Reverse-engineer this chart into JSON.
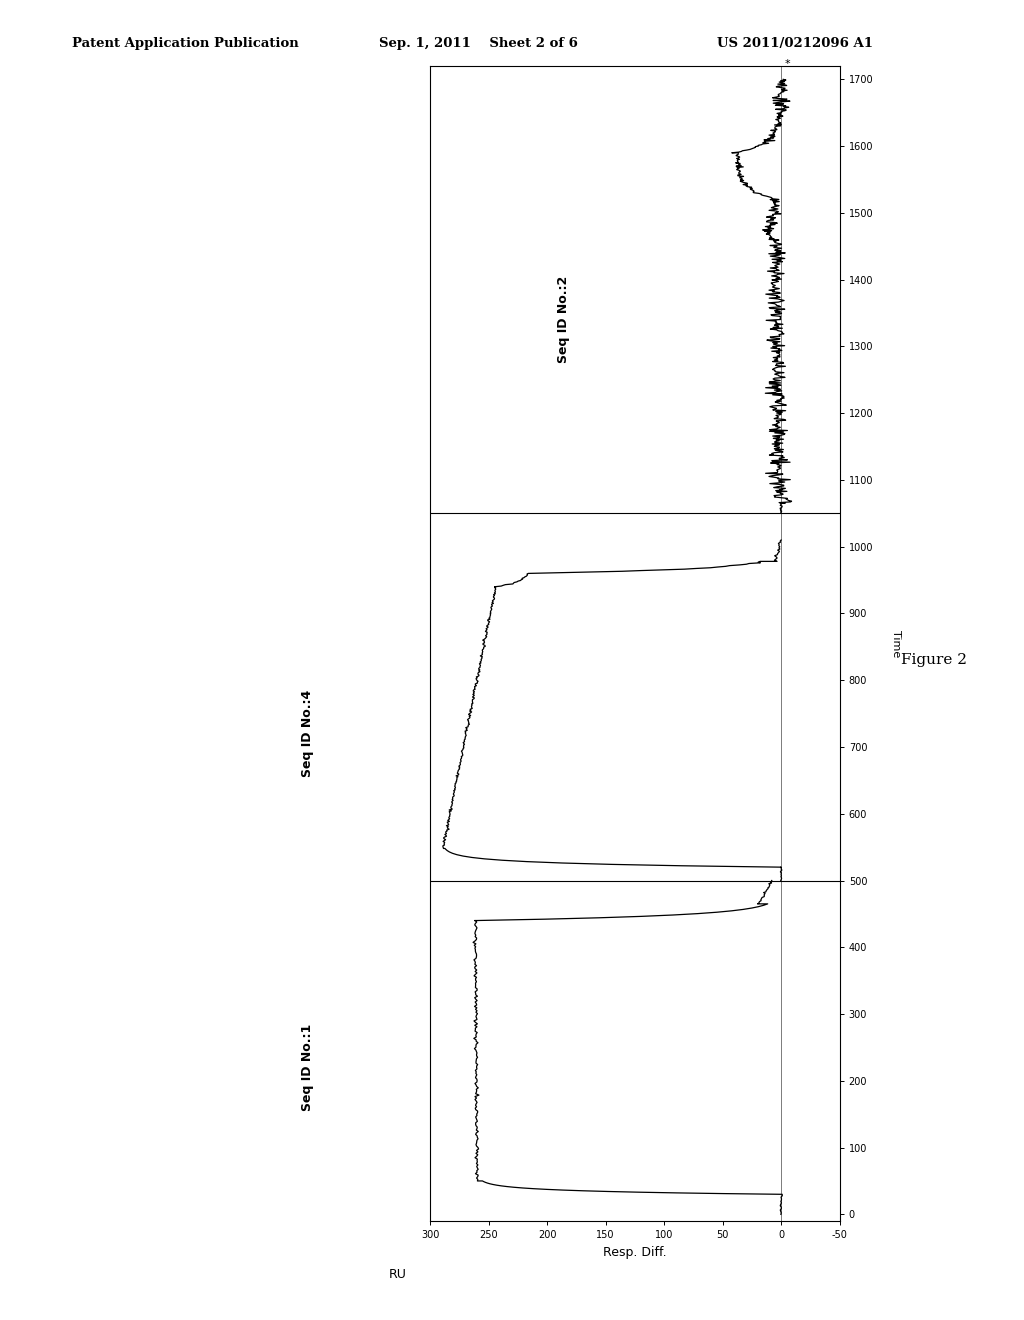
{
  "header_left": "Patent Application Publication",
  "header_center": "Sep. 1, 2011    Sheet 2 of 6",
  "header_right": "US 2011/0212096 A1",
  "figure_label": "Figure 2",
  "xlabel": "Resp. Diff.",
  "ylabel_right": "Time",
  "ru_label": "RU",
  "x_ticks": [
    300,
    250,
    200,
    150,
    100,
    50,
    0,
    -50
  ],
  "x_tick_labels": [
    "300",
    "250",
    "200",
    "150",
    "100",
    "50",
    "0",
    "-50"
  ],
  "y_ticks": [
    0,
    100,
    200,
    300,
    400,
    500,
    600,
    700,
    800,
    900,
    1000,
    1100,
    1200,
    1300,
    1400,
    1500,
    1600,
    1700
  ],
  "seq1_label": "Seq ID No.:1",
  "seq2_label": "Seq ID No.:2",
  "seq4_label": "Seq ID No.:4",
  "background_color": "#ffffff",
  "line_color": "#000000"
}
